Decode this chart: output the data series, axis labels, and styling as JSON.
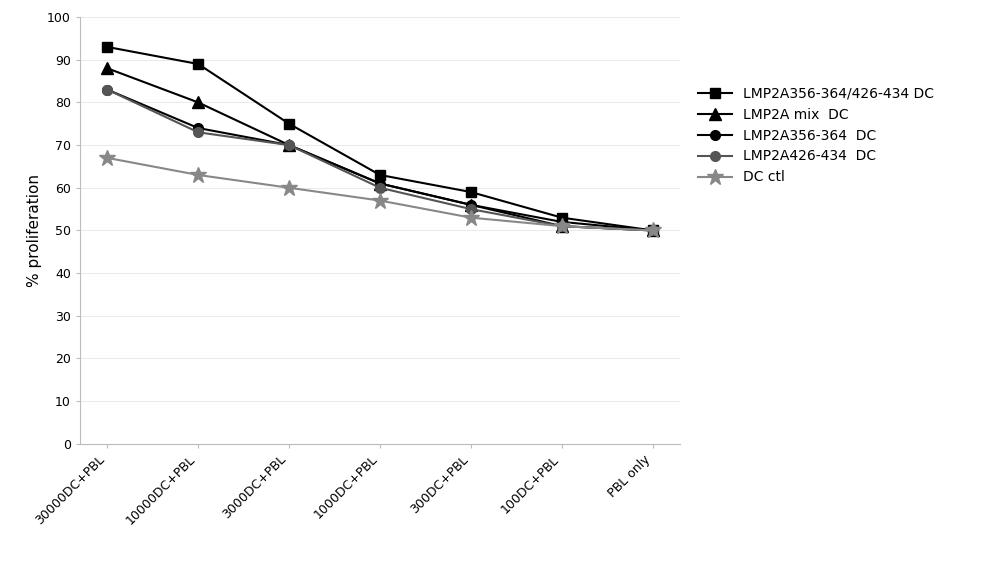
{
  "x_labels": [
    "30000DC+PBL",
    "10000DC+PBL",
    "3000DC+PBL",
    "1000DC+PBL",
    "300DC+PBL",
    "100DC+PBL",
    "PBL only"
  ],
  "series": [
    {
      "label": "LMP2A356-364/426-434 DC",
      "marker": "s",
      "values": [
        93,
        89,
        75,
        63,
        59,
        53,
        50
      ],
      "color": "#000000"
    },
    {
      "label": "LMP2A mix  DC",
      "marker": "^",
      "values": [
        88,
        80,
        70,
        61,
        56,
        51,
        50
      ],
      "color": "#000000"
    },
    {
      "label": "LMP2A356-364  DC",
      "marker": "o",
      "values": [
        83,
        74,
        70,
        61,
        56,
        52,
        50
      ],
      "color": "#000000"
    },
    {
      "label": "LMP2A426-434  DC",
      "marker": "o",
      "values": [
        83,
        73,
        70,
        60,
        55,
        51,
        50
      ],
      "color": "#555555"
    },
    {
      "label": "DC ctl",
      "marker": "*",
      "values": [
        67,
        63,
        60,
        57,
        53,
        51,
        50
      ],
      "color": "#888888"
    }
  ],
  "ylabel": "% proliferation",
  "ylim": [
    0,
    100
  ],
  "yticks": [
    0,
    10,
    20,
    30,
    40,
    50,
    60,
    70,
    80,
    90,
    100
  ],
  "marker_sizes": {
    "s": 7,
    "^": 8,
    "o": 7,
    "*": 12
  },
  "linewidth": 1.5,
  "xlabel_fontsize": 9,
  "ylabel_fontsize": 11,
  "legend_fontsize": 10
}
